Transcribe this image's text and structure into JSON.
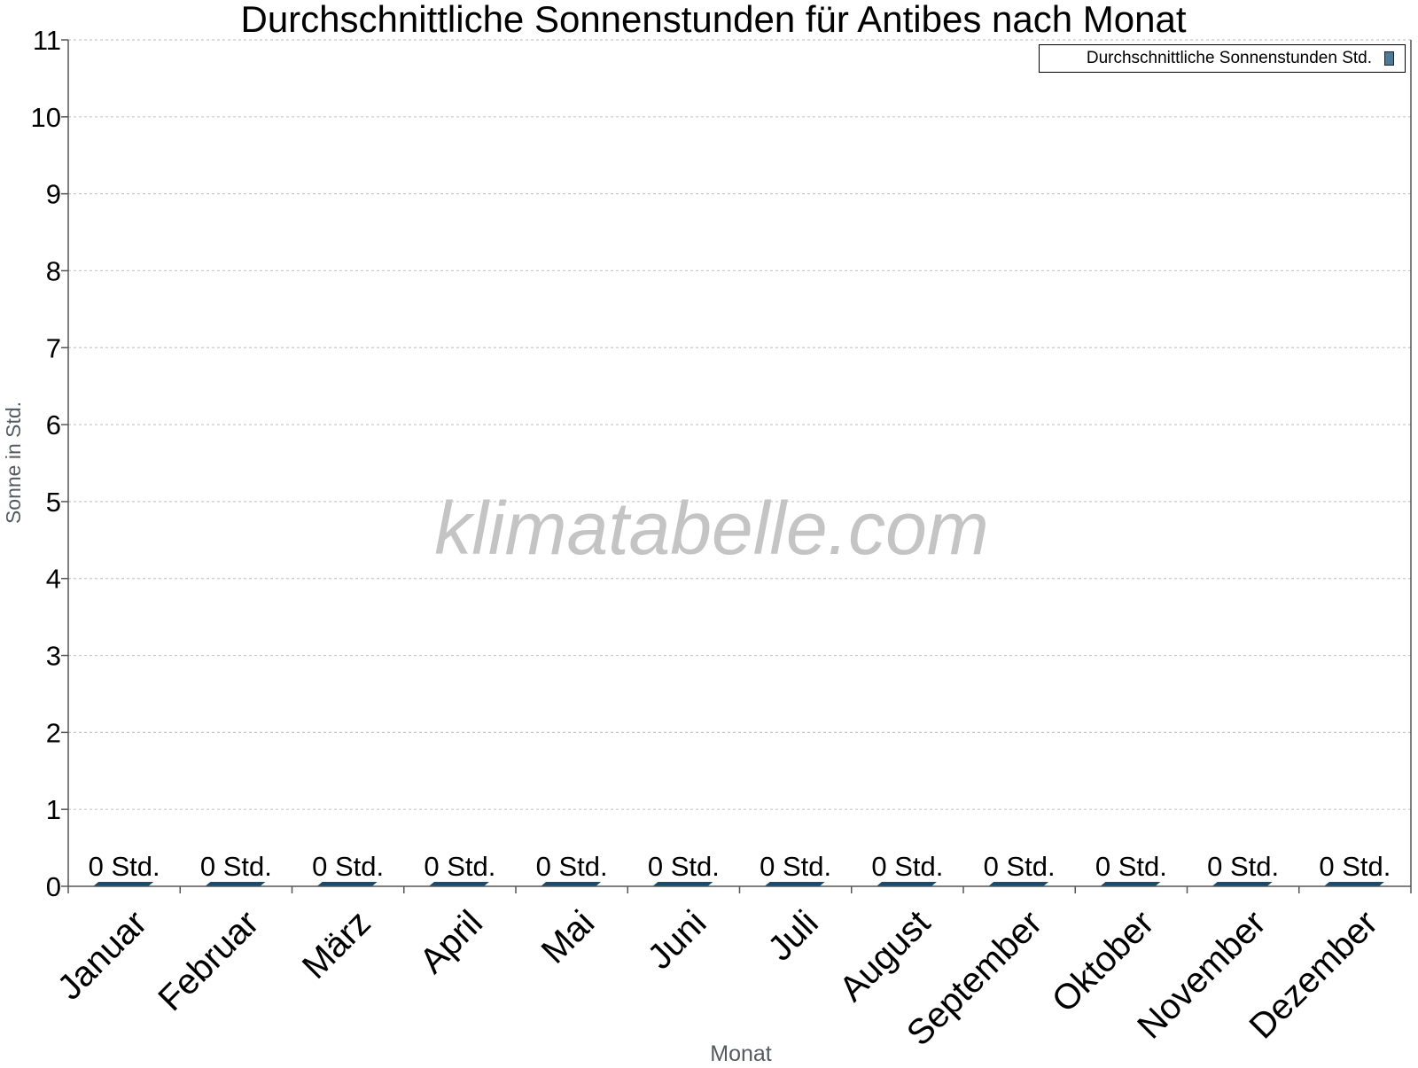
{
  "chart_data": {
    "type": "bar",
    "title": "Durchschnittliche Sonnenstunden für Antibes nach Monat",
    "xlabel": "Monat",
    "ylabel": "Sonne in Std.",
    "ylim": [
      0,
      11
    ],
    "yticks": [
      0,
      1,
      2,
      3,
      4,
      5,
      6,
      7,
      8,
      9,
      10,
      11
    ],
    "grid": true,
    "legend_position": "top-right",
    "watermark": "klimatabelle.com",
    "categories": [
      "Januar",
      "Februar",
      "März",
      "April",
      "Mai",
      "Juni",
      "Juli",
      "August",
      "September",
      "Oktober",
      "November",
      "Dezember"
    ],
    "series": [
      {
        "name": "Durchschnittliche Sonnenstunden Std.",
        "values": [
          0,
          0,
          0,
          0,
          0,
          0,
          0,
          0,
          0,
          0,
          0,
          0
        ],
        "data_labels": [
          "0 Std.",
          "0 Std.",
          "0 Std.",
          "0 Std.",
          "0 Std.",
          "0 Std.",
          "0 Std.",
          "0 Std.",
          "0 Std.",
          "0 Std.",
          "0 Std.",
          "0 Std."
        ]
      }
    ],
    "colors": {
      "bar": "#1b4a6b",
      "legend_swatch": "#4a7a9c",
      "grid": "#c8c8c8",
      "axis": "#555555",
      "axis_label": "#555a60",
      "watermark": "#c4c4c4"
    }
  }
}
